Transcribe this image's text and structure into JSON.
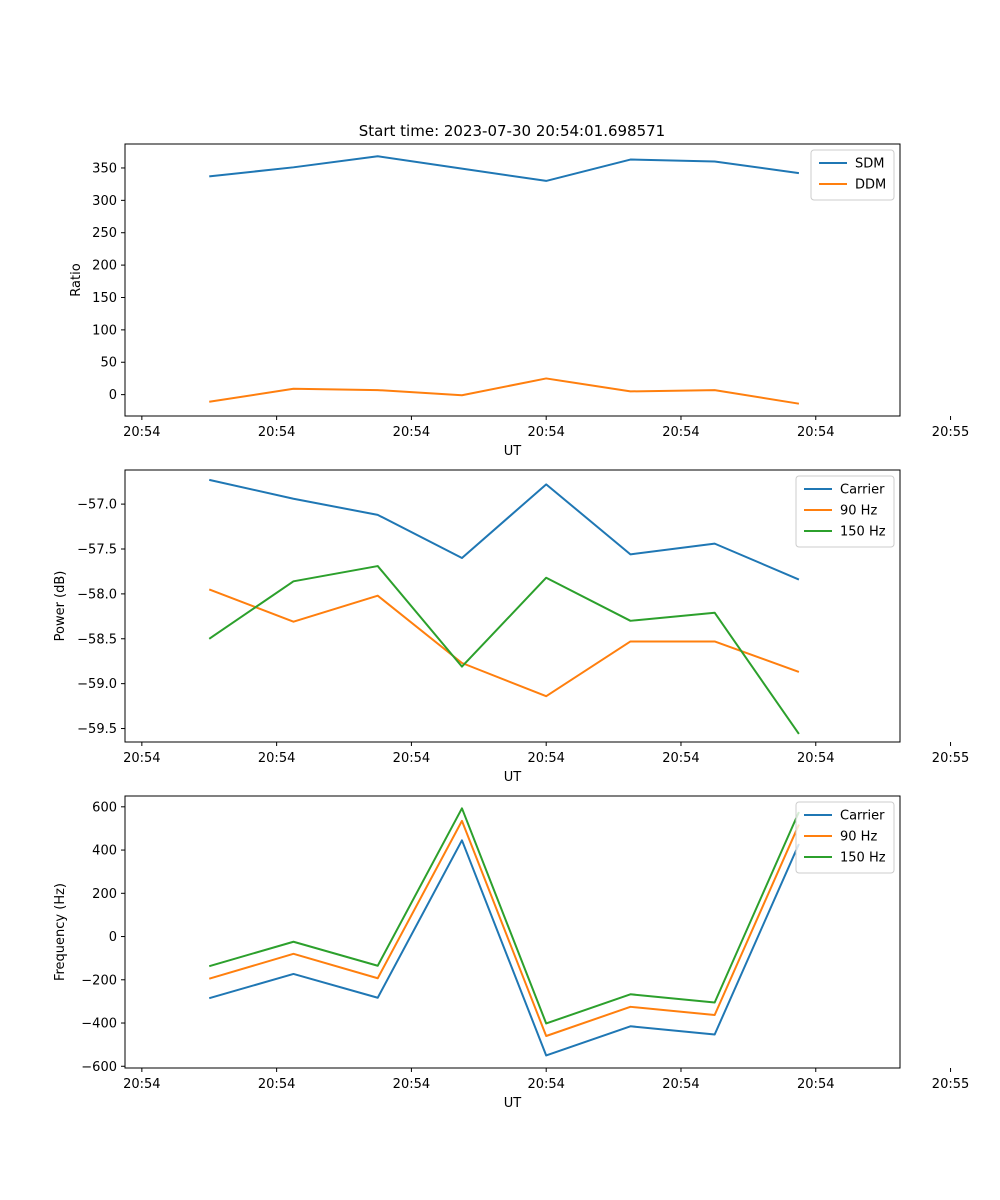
{
  "title": "Start time: 2023-07-30 20:54:01.698571",
  "chart_data": [
    {
      "type": "line",
      "ylabel": "Ratio",
      "xlabel": "UT",
      "ylim": [
        -33,
        387
      ],
      "yticks": [
        0,
        50,
        100,
        150,
        200,
        250,
        300,
        350
      ],
      "xlim": [
        -0.6,
        8.6
      ],
      "xticks": [
        -0.4,
        1.2,
        2.8,
        4.4,
        6.0,
        7.6,
        9.2
      ],
      "xtick_labels": [
        "20:54",
        "20:54",
        "20:54",
        "20:54",
        "20:54",
        "20:54",
        "20:55"
      ],
      "x": [
        0.4,
        1.4,
        2.4,
        3.4,
        4.4,
        5.4,
        6.4,
        7.4
      ],
      "series": [
        {
          "name": "SDM",
          "color": "#1f77b4",
          "values": [
            337,
            351,
            368,
            349,
            330,
            363,
            360,
            342
          ]
        },
        {
          "name": "DDM",
          "color": "#ff7f0e",
          "values": [
            -11,
            9,
            7,
            -1,
            25,
            5,
            7,
            -14
          ]
        }
      ]
    },
    {
      "type": "line",
      "ylabel": "Power (dB)",
      "xlabel": "UT",
      "ylim": [
        -59.65,
        -56.62
      ],
      "yticks": [
        -59.5,
        -59.0,
        -58.5,
        -58.0,
        -57.5,
        -57.0
      ],
      "ytick_labels": [
        "−59.5",
        "−59.0",
        "−58.5",
        "−58.0",
        "−57.5",
        "−57.0"
      ],
      "xlim": [
        -0.6,
        8.6
      ],
      "xticks": [
        -0.4,
        1.2,
        2.8,
        4.4,
        6.0,
        7.6,
        9.2
      ],
      "xtick_labels": [
        "20:54",
        "20:54",
        "20:54",
        "20:54",
        "20:54",
        "20:54",
        "20:55"
      ],
      "x": [
        0.4,
        1.4,
        2.4,
        3.4,
        4.4,
        5.4,
        6.4,
        7.4
      ],
      "series": [
        {
          "name": "Carrier",
          "color": "#1f77b4",
          "values": [
            -56.73,
            -56.94,
            -57.12,
            -57.6,
            -56.78,
            -57.56,
            -57.44,
            -57.84
          ]
        },
        {
          "name": "90 Hz",
          "color": "#ff7f0e",
          "values": [
            -57.95,
            -58.31,
            -58.02,
            -58.77,
            -59.14,
            -58.53,
            -58.53,
            -58.87
          ]
        },
        {
          "name": "150 Hz",
          "color": "#2ca02c",
          "values": [
            -58.5,
            -57.86,
            -57.69,
            -58.81,
            -57.82,
            -58.3,
            -58.21,
            -59.56
          ]
        }
      ]
    },
    {
      "type": "line",
      "ylabel": "Frequency (Hz)",
      "xlabel": "UT",
      "ylim": [
        -608,
        650
      ],
      "yticks": [
        -600,
        -400,
        -200,
        0,
        200,
        400,
        600
      ],
      "ytick_labels": [
        "−600",
        "−400",
        "−200",
        "0",
        "200",
        "400",
        "600"
      ],
      "xlim": [
        -0.6,
        8.6
      ],
      "xticks": [
        -0.4,
        1.2,
        2.8,
        4.4,
        6.0,
        7.6,
        9.2
      ],
      "xtick_labels": [
        "20:54",
        "20:54",
        "20:54",
        "20:54",
        "20:54",
        "20:54",
        "20:55"
      ],
      "x": [
        0.4,
        1.4,
        2.4,
        3.4,
        4.4,
        5.4,
        6.4,
        7.4
      ],
      "series": [
        {
          "name": "Carrier",
          "color": "#1f77b4",
          "values": [
            -285,
            -173,
            -283,
            445,
            -550,
            -415,
            -453,
            428
          ]
        },
        {
          "name": "90 Hz",
          "color": "#ff7f0e",
          "values": [
            -195,
            -80,
            -193,
            535,
            -460,
            -325,
            -363,
            518
          ]
        },
        {
          "name": "150 Hz",
          "color": "#2ca02c",
          "values": [
            -137,
            -24,
            -135,
            593,
            -402,
            -267,
            -305,
            576
          ]
        }
      ]
    }
  ]
}
